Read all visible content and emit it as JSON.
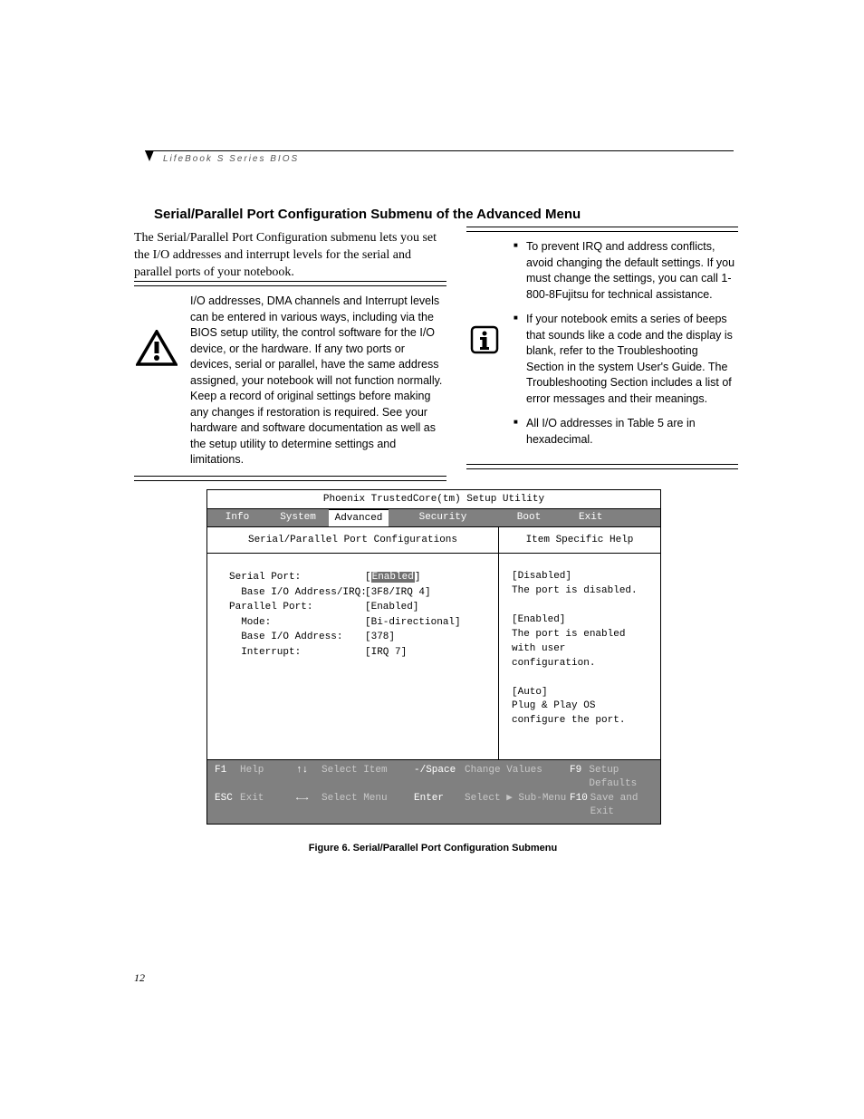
{
  "running_head": "LifeBook S Series BIOS",
  "title": "Serial/Parallel Port Configuration Submenu of the Advanced Menu",
  "intro": "The Serial/Parallel Port Configuration submenu lets you set the I/O addresses and interrupt levels for the serial and parallel ports of your notebook.",
  "warning_text": "I/O addresses, DMA channels and Interrupt levels can be entered in various ways, including via the BIOS setup utility, the control software for the I/O device, or the hardware. If any two ports or devices, serial or parallel, have the same address assigned, your notebook will not function normally. Keep a record of original settings before making any changes if restoration is required. See your hardware and software documentation as well as the setup utility to determine settings and limitations.",
  "info_bullets": [
    "To prevent IRQ and address conflicts, avoid changing the default settings. If you must change the settings, you can call 1-800-8Fujitsu for technical assistance.",
    "If your notebook emits a series of beeps that sounds like a code and the display is blank, refer to the Troubleshooting Section in the system User's Guide. The Troubleshooting Section includes a list of error messages and their meanings.",
    "All I/O addresses in Table 5 are in hexadecimal."
  ],
  "bios": {
    "utility_title": "Phoenix TrustedCore(tm) Setup Utility",
    "tabs": [
      "Info",
      "System",
      "Advanced",
      "Security",
      "Boot",
      "Exit"
    ],
    "active_tab": "Advanced",
    "panel_title": "Serial/Parallel Port Configurations",
    "help_title": "Item Specific Help",
    "settings": [
      {
        "label": "Serial Port:",
        "value": "[Enabled]",
        "selected": true,
        "indent": 0
      },
      {
        "label": "  Base I/O Address/IRQ:",
        "value": "[3F8/IRQ 4]",
        "indent": 0
      },
      {
        "label": "Parallel Port:",
        "value": "[Enabled]",
        "indent": 0
      },
      {
        "label": "  Mode:",
        "value": "[Bi-directional]",
        "indent": 0
      },
      {
        "label": "  Base I/O Address:",
        "value": "[378]",
        "indent": 0
      },
      {
        "label": "  Interrupt:",
        "value": "[IRQ 7]",
        "indent": 0
      }
    ],
    "help_lines": [
      "[Disabled]",
      "The port is disabled.",
      "",
      "[Enabled]",
      "The port is enabled",
      "with user configuration.",
      "",
      "[Auto]",
      "Plug & Play OS",
      "configure the port."
    ],
    "footer": {
      "row1": {
        "k1": "F1",
        "l1": "Help",
        "k2": "↑↓",
        "l2": "Select Item",
        "k3": "-/Space",
        "l3": "Change Values",
        "k4": "F9",
        "l4": "Setup Defaults"
      },
      "row2": {
        "k1": "ESC",
        "l1": "Exit",
        "k2": "←→",
        "l2": "Select Menu",
        "k3": "Enter",
        "l3": "Select ▶ Sub-Menu",
        "k4": "F10",
        "l4": "Save and Exit"
      }
    }
  },
  "figure_caption": "Figure 6.  Serial/Parallel Port Configuration Submenu",
  "page_number": "12"
}
